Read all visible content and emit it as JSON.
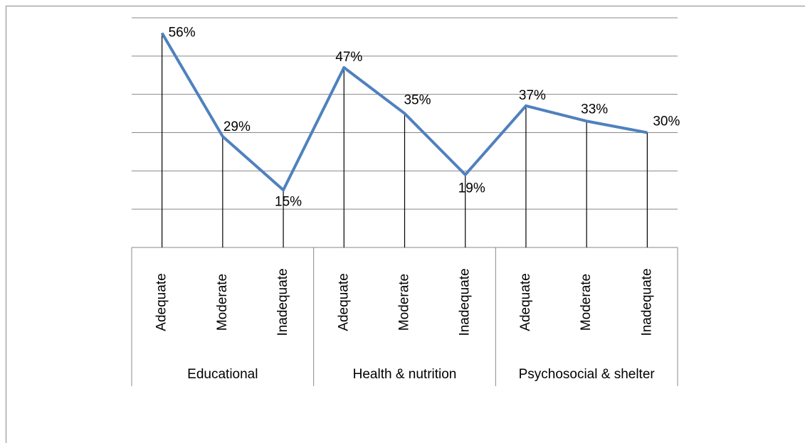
{
  "chart_data": {
    "type": "line",
    "category_groups": [
      {
        "name": "Educational",
        "categories": [
          "Adequate",
          "Moderate",
          "Inadequate"
        ]
      },
      {
        "name": "Health & nutrition",
        "categories": [
          "Adequate",
          "Moderate",
          "Inadequate"
        ]
      },
      {
        "name": "Psychosocial & shelter",
        "categories": [
          "Adequate",
          "Moderate",
          "Inadequate"
        ]
      }
    ],
    "values": [
      56,
      29,
      15,
      47,
      35,
      19,
      37,
      33,
      30
    ],
    "value_labels": [
      "56%",
      "29%",
      "15%",
      "47%",
      "35%",
      "19%",
      "37%",
      "33%",
      "30%"
    ],
    "color": "#4f81bd",
    "drop_lines": true,
    "ylim": [
      0,
      60
    ],
    "yticks": [
      0,
      10,
      20,
      30,
      40,
      50,
      60
    ],
    "grid": true
  }
}
